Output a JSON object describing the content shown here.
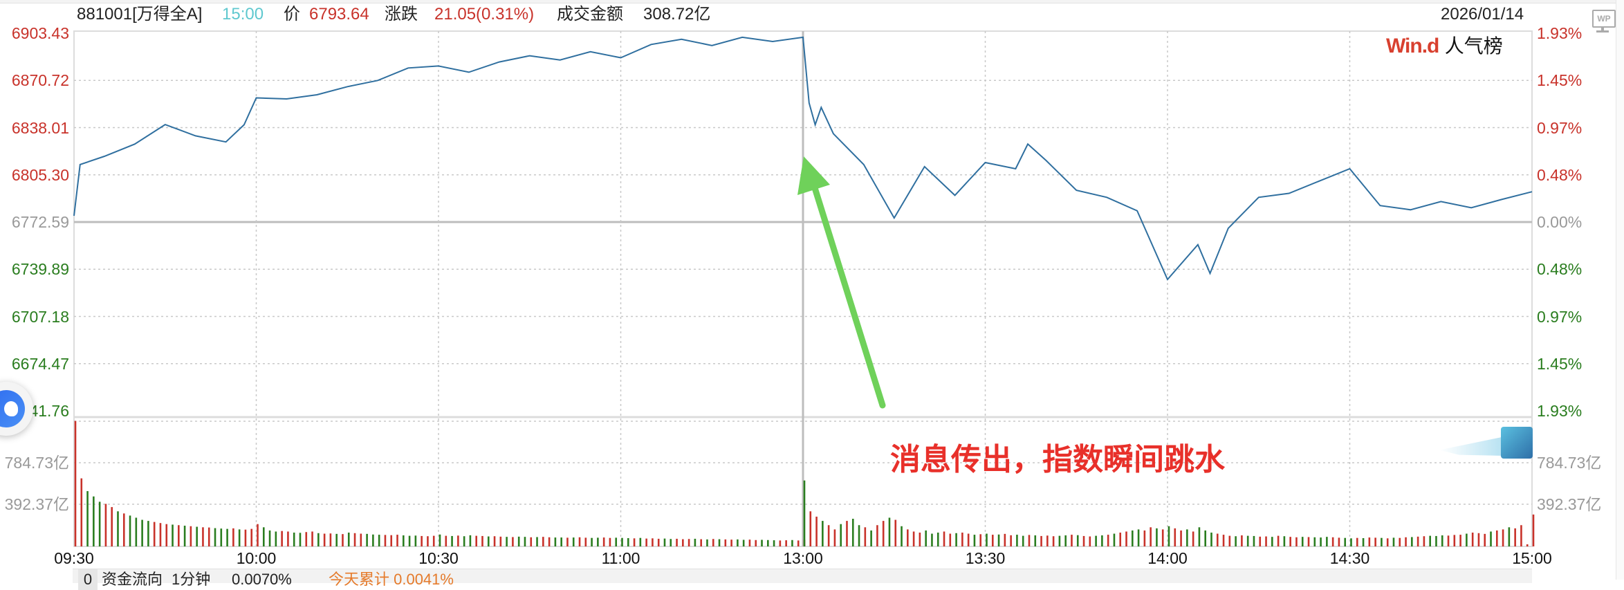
{
  "header": {
    "code_name": "881001[万得全A]",
    "time": "15:00",
    "price_label": "价",
    "price": "6793.64",
    "change_label": "涨跌",
    "change": "21.05(0.31%)",
    "turnover_label": "成交金额",
    "turnover": "308.72亿",
    "date": "2026/01/14"
  },
  "wp_icon_label": "WP",
  "logo": {
    "brand": "Win.d",
    "text": "人气榜"
  },
  "annotation": "消息传出，指数瞬间跳水",
  "bottom_bar": {
    "index": "0",
    "label": "资金流向",
    "period": "1分钟",
    "value": "0.0070%",
    "cumulative": "今天累计 0.0041%"
  },
  "colors": {
    "up": "#c8322a",
    "down": "#2a7d1f",
    "line": "#2f6f9f",
    "arrow": "#6fd15a",
    "annotation": "#e8302a"
  },
  "chart_data": {
    "type": "line",
    "price_axis": {
      "ticks": [
        "6903.43",
        "6870.72",
        "6838.01",
        "6805.30",
        "6772.59",
        "6739.89",
        "6707.18",
        "6674.47",
        "6641.76"
      ],
      "ylim": [
        6641.76,
        6903.43
      ],
      "prev_close": 6772.59
    },
    "percent_axis": {
      "ticks": [
        "1.93%",
        "1.45%",
        "0.97%",
        "0.48%",
        "0.00%",
        "0.48%",
        "0.97%",
        "1.45%",
        "1.93%"
      ]
    },
    "time_axis": {
      "ticks": [
        "09:30",
        "10:00",
        "10:30",
        "11:00",
        "13:00",
        "13:30",
        "14:00",
        "14:30",
        "15:00"
      ]
    },
    "volume_axis": {
      "ticks": [
        "784.73亿",
        "392.37亿"
      ],
      "unit": "亿",
      "ylim": [
        0,
        1177.1
      ]
    },
    "price_series": [
      [
        "09:30",
        6776.9
      ],
      [
        "09:31",
        6812.4
      ],
      [
        "09:35",
        6818.1
      ],
      [
        "09:40",
        6826.6
      ],
      [
        "09:45",
        6840.1
      ],
      [
        "09:50",
        6832.3
      ],
      [
        "09:55",
        6828.1
      ],
      [
        "09:58",
        6840.0
      ],
      [
        "10:00",
        6858.6
      ],
      [
        "10:05",
        6857.9
      ],
      [
        "10:10",
        6860.8
      ],
      [
        "10:15",
        6866.4
      ],
      [
        "10:20",
        6870.7
      ],
      [
        "10:25",
        6879.3
      ],
      [
        "10:30",
        6880.7
      ],
      [
        "10:35",
        6876.4
      ],
      [
        "10:40",
        6883.5
      ],
      [
        "10:45",
        6887.8
      ],
      [
        "10:50",
        6884.9
      ],
      [
        "10:55",
        6890.6
      ],
      [
        "11:00",
        6886.4
      ],
      [
        "11:05",
        6895.6
      ],
      [
        "11:10",
        6899.2
      ],
      [
        "11:15",
        6894.9
      ],
      [
        "11:20",
        6900.6
      ],
      [
        "11:25",
        6897.7
      ],
      [
        "11:30",
        6900.6
      ],
      [
        "13:00",
        6900.6
      ],
      [
        "13:01",
        6855.1
      ],
      [
        "13:02",
        6840.0
      ],
      [
        "13:03",
        6852.0
      ],
      [
        "13:05",
        6833.8
      ],
      [
        "13:10",
        6812.4
      ],
      [
        "13:15",
        6775.4
      ],
      [
        "13:20",
        6811.0
      ],
      [
        "13:25",
        6791.1
      ],
      [
        "13:30",
        6813.8
      ],
      [
        "13:35",
        6809.5
      ],
      [
        "13:37",
        6826.6
      ],
      [
        "13:40",
        6815.3
      ],
      [
        "13:45",
        6794.6
      ],
      [
        "13:50",
        6789.7
      ],
      [
        "13:55",
        6780.4
      ],
      [
        "14:00",
        6732.8
      ],
      [
        "14:05",
        6756.9
      ],
      [
        "14:07",
        6737.0
      ],
      [
        "14:10",
        6768.3
      ],
      [
        "14:15",
        6789.7
      ],
      [
        "14:20",
        6792.5
      ],
      [
        "14:25",
        6801.0
      ],
      [
        "14:30",
        6809.5
      ],
      [
        "14:35",
        6784.0
      ],
      [
        "14:40",
        6781.1
      ],
      [
        "14:45",
        6786.8
      ],
      [
        "14:50",
        6782.5
      ],
      [
        "14:55",
        6788.2
      ],
      [
        "15:00",
        6793.6
      ]
    ],
    "volume_morning": [
      1180,
      640,
      520,
      470,
      420,
      400,
      370,
      330,
      310,
      290,
      270,
      250,
      240,
      230,
      220,
      210,
      205,
      200,
      195,
      190,
      185,
      180,
      178,
      172,
      168,
      165,
      170,
      160,
      158,
      165,
      210,
      180,
      150,
      140,
      145,
      140,
      130,
      128,
      135,
      140,
      125,
      120,
      122,
      118,
      116,
      130,
      125,
      120,
      118,
      112,
      110,
      108,
      106,
      110,
      104,
      100,
      102,
      98,
      96,
      100,
      112,
      100,
      98,
      102,
      96,
      105,
      100,
      98,
      94,
      96,
      92,
      90,
      88,
      92,
      90,
      86,
      88,
      90,
      86,
      84,
      84,
      82,
      84,
      86,
      82,
      80,
      82,
      84,
      80,
      82,
      80,
      78,
      76,
      80,
      74,
      76,
      72,
      74,
      70,
      72,
      68,
      70,
      72,
      68,
      66,
      70,
      68,
      66,
      64,
      66,
      62,
      64,
      60,
      62,
      60,
      58,
      56,
      58,
      60,
      56,
      62
    ],
    "volume_afternoon": [
      620,
      330,
      280,
      240,
      200,
      160,
      210,
      240,
      260,
      200,
      180,
      150,
      200,
      240,
      270,
      250,
      190,
      160,
      140,
      130,
      150,
      120,
      130,
      140,
      120,
      125,
      130,
      120,
      110,
      115,
      120,
      110,
      112,
      118,
      105,
      110,
      100,
      108,
      104,
      98,
      102,
      96,
      100,
      104,
      110,
      106,
      98,
      94,
      100,
      104,
      110,
      120,
      130,
      140,
      150,
      160,
      150,
      180,
      170,
      160,
      190,
      170,
      150,
      160,
      140,
      180,
      150,
      130,
      120,
      110,
      100,
      96,
      104,
      100,
      98,
      92,
      94,
      90,
      100,
      96,
      90,
      86,
      90,
      88,
      86,
      84,
      90,
      86,
      82,
      80,
      76,
      80,
      78,
      84,
      82,
      80,
      76,
      82,
      80,
      86,
      88,
      92,
      96,
      100,
      98,
      104,
      102,
      108,
      110,
      120,
      130,
      125,
      118,
      140,
      150,
      160,
      180,
      170,
      200,
      20,
      300
    ],
    "volume_direction_morning": "rrgggrrgrggggrrrgrgrgrrgggrgrrrgggrrggrrgrrgrgrrgggrrrgggrrrgrgrggrrgrrgrggrgrrggrgrrggrrgggrgrrrggrrrgrgrgrrggrrgggrrgrr",
    "volume_direction_afternoon": "grrgrrgrggrgrrgrgrrrgggrrgrrgrgrgrrggrgrrrggrgrrggrgrrggrrgrgrrgrgggrrrgrggrrgrgrrgrgggrrggrgrrgrgrrgrrgggrrrgrrrgrrgrrrr"
  }
}
